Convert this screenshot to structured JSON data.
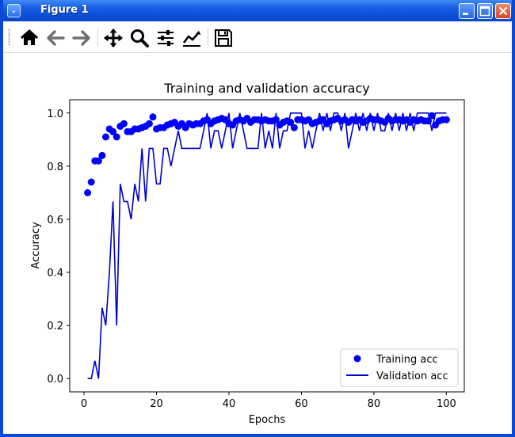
{
  "window": {
    "title": "Figure 1"
  },
  "toolbar": {
    "buttons": [
      {
        "name": "home-icon",
        "label": "Home"
      },
      {
        "name": "back-icon",
        "label": "Back"
      },
      {
        "name": "forward-icon",
        "label": "Forward"
      },
      {
        "name": "pan-icon",
        "label": "Pan"
      },
      {
        "name": "zoom-icon",
        "label": "Zoom"
      },
      {
        "name": "subplots-icon",
        "label": "Subplots"
      },
      {
        "name": "customize-icon",
        "label": "Customize"
      },
      {
        "name": "save-icon",
        "label": "Save"
      }
    ]
  },
  "chart_data": {
    "type": "line",
    "title": "Training and validation accuracy",
    "xlabel": "Epochs",
    "ylabel": "Accuracy",
    "xlim": [
      -3.95,
      104.95
    ],
    "ylim": [
      -0.05,
      1.05
    ],
    "xticks": [
      0,
      20,
      40,
      60,
      80,
      100
    ],
    "yticks": [
      0.0,
      0.2,
      0.4,
      0.6,
      0.8,
      1.0
    ],
    "xtick_labels": [
      "0",
      "20",
      "40",
      "60",
      "80",
      "100"
    ],
    "ytick_labels": [
      "0.0",
      "0.2",
      "0.4",
      "0.6",
      "0.8",
      "1.0"
    ],
    "legend_position": "lower right",
    "grid": false,
    "series": [
      {
        "name": "Training acc",
        "style": "scatter",
        "color": "#0000ff",
        "x": [
          1,
          2,
          3,
          4,
          5,
          6,
          7,
          8,
          9,
          10,
          11,
          12,
          13,
          14,
          15,
          16,
          17,
          18,
          19,
          20,
          21,
          22,
          23,
          24,
          25,
          26,
          27,
          28,
          29,
          30,
          31,
          32,
          33,
          34,
          35,
          36,
          37,
          38,
          39,
          40,
          41,
          42,
          43,
          44,
          45,
          46,
          47,
          48,
          49,
          50,
          51,
          52,
          53,
          54,
          55,
          56,
          57,
          58,
          59,
          60,
          61,
          62,
          63,
          64,
          65,
          66,
          67,
          68,
          69,
          70,
          71,
          72,
          73,
          74,
          75,
          76,
          77,
          78,
          79,
          80,
          81,
          82,
          83,
          84,
          85,
          86,
          87,
          88,
          89,
          90,
          91,
          92,
          93,
          94,
          95,
          96,
          97,
          98,
          99,
          100
        ],
        "values": [
          0.7,
          0.74,
          0.82,
          0.82,
          0.84,
          0.91,
          0.94,
          0.93,
          0.91,
          0.95,
          0.96,
          0.93,
          0.93,
          0.94,
          0.94,
          0.945,
          0.95,
          0.96,
          0.985,
          0.94,
          0.945,
          0.945,
          0.955,
          0.96,
          0.965,
          0.95,
          0.96,
          0.945,
          0.96,
          0.955,
          0.96,
          0.96,
          0.97,
          0.975,
          0.96,
          0.97,
          0.975,
          0.98,
          0.975,
          0.96,
          0.955,
          0.97,
          0.975,
          0.97,
          0.98,
          0.965,
          0.975,
          0.975,
          0.97,
          0.975,
          0.97,
          0.97,
          0.975,
          0.955,
          0.965,
          0.97,
          0.965,
          0.945,
          0.975,
          0.975,
          0.97,
          0.975,
          0.96,
          0.965,
          0.97,
          0.975,
          0.96,
          0.97,
          0.975,
          0.98,
          0.97,
          0.975,
          0.965,
          0.975,
          0.97,
          0.975,
          0.965,
          0.97,
          0.98,
          0.975,
          0.975,
          0.97,
          0.965,
          0.98,
          0.97,
          0.975,
          0.975,
          0.97,
          0.975,
          0.965,
          0.975,
          0.97,
          0.975,
          0.97,
          0.97,
          0.99,
          0.955,
          0.97,
          0.975,
          0.975
        ]
      },
      {
        "name": "Validation acc",
        "style": "line",
        "color": "#0000cc",
        "x": [
          1,
          2,
          3,
          4,
          5,
          6,
          7,
          8,
          9,
          10,
          11,
          12,
          13,
          14,
          15,
          16,
          17,
          18,
          19,
          20,
          21,
          22,
          23,
          24,
          25,
          26,
          27,
          28,
          29,
          30,
          31,
          32,
          33,
          34,
          35,
          36,
          37,
          38,
          39,
          40,
          41,
          42,
          43,
          44,
          45,
          46,
          47,
          48,
          49,
          50,
          51,
          52,
          53,
          54,
          55,
          56,
          57,
          58,
          59,
          60,
          61,
          62,
          63,
          64,
          65,
          66,
          67,
          68,
          69,
          70,
          71,
          72,
          73,
          74,
          75,
          76,
          77,
          78,
          79,
          80,
          81,
          82,
          83,
          84,
          85,
          86,
          87,
          88,
          89,
          90,
          91,
          92,
          93,
          94,
          95,
          96,
          97,
          98,
          99,
          100
        ],
        "values": [
          0.0,
          0.0,
          0.067,
          0.0,
          0.267,
          0.2,
          0.4,
          0.667,
          0.2,
          0.733,
          0.667,
          0.667,
          0.6,
          0.733,
          0.667,
          0.867,
          0.667,
          0.867,
          0.867,
          0.733,
          0.733,
          0.867,
          0.867,
          0.8,
          0.867,
          0.933,
          0.867,
          0.867,
          0.867,
          0.867,
          0.867,
          0.867,
          0.933,
          1.0,
          0.867,
          0.933,
          0.933,
          0.867,
          0.933,
          1.0,
          0.867,
          0.933,
          1.0,
          0.933,
          0.867,
          0.867,
          0.867,
          0.867,
          1.0,
          0.867,
          0.933,
          0.867,
          1.0,
          0.867,
          0.933,
          0.933,
          1.0,
          1.0,
          1.0,
          1.0,
          0.867,
          0.933,
          0.867,
          0.933,
          1.0,
          0.933,
          1.0,
          0.933,
          1.0,
          1.0,
          0.933,
          1.0,
          0.867,
          0.933,
          1.0,
          0.933,
          1.0,
          0.933,
          1.0,
          0.933,
          1.0,
          0.933,
          0.933,
          1.0,
          0.933,
          1.0,
          0.933,
          1.0,
          0.933,
          1.0,
          0.933,
          1.0,
          1.0,
          1.0,
          1.0,
          0.933,
          1.0,
          1.0,
          1.0,
          1.0
        ]
      }
    ]
  }
}
